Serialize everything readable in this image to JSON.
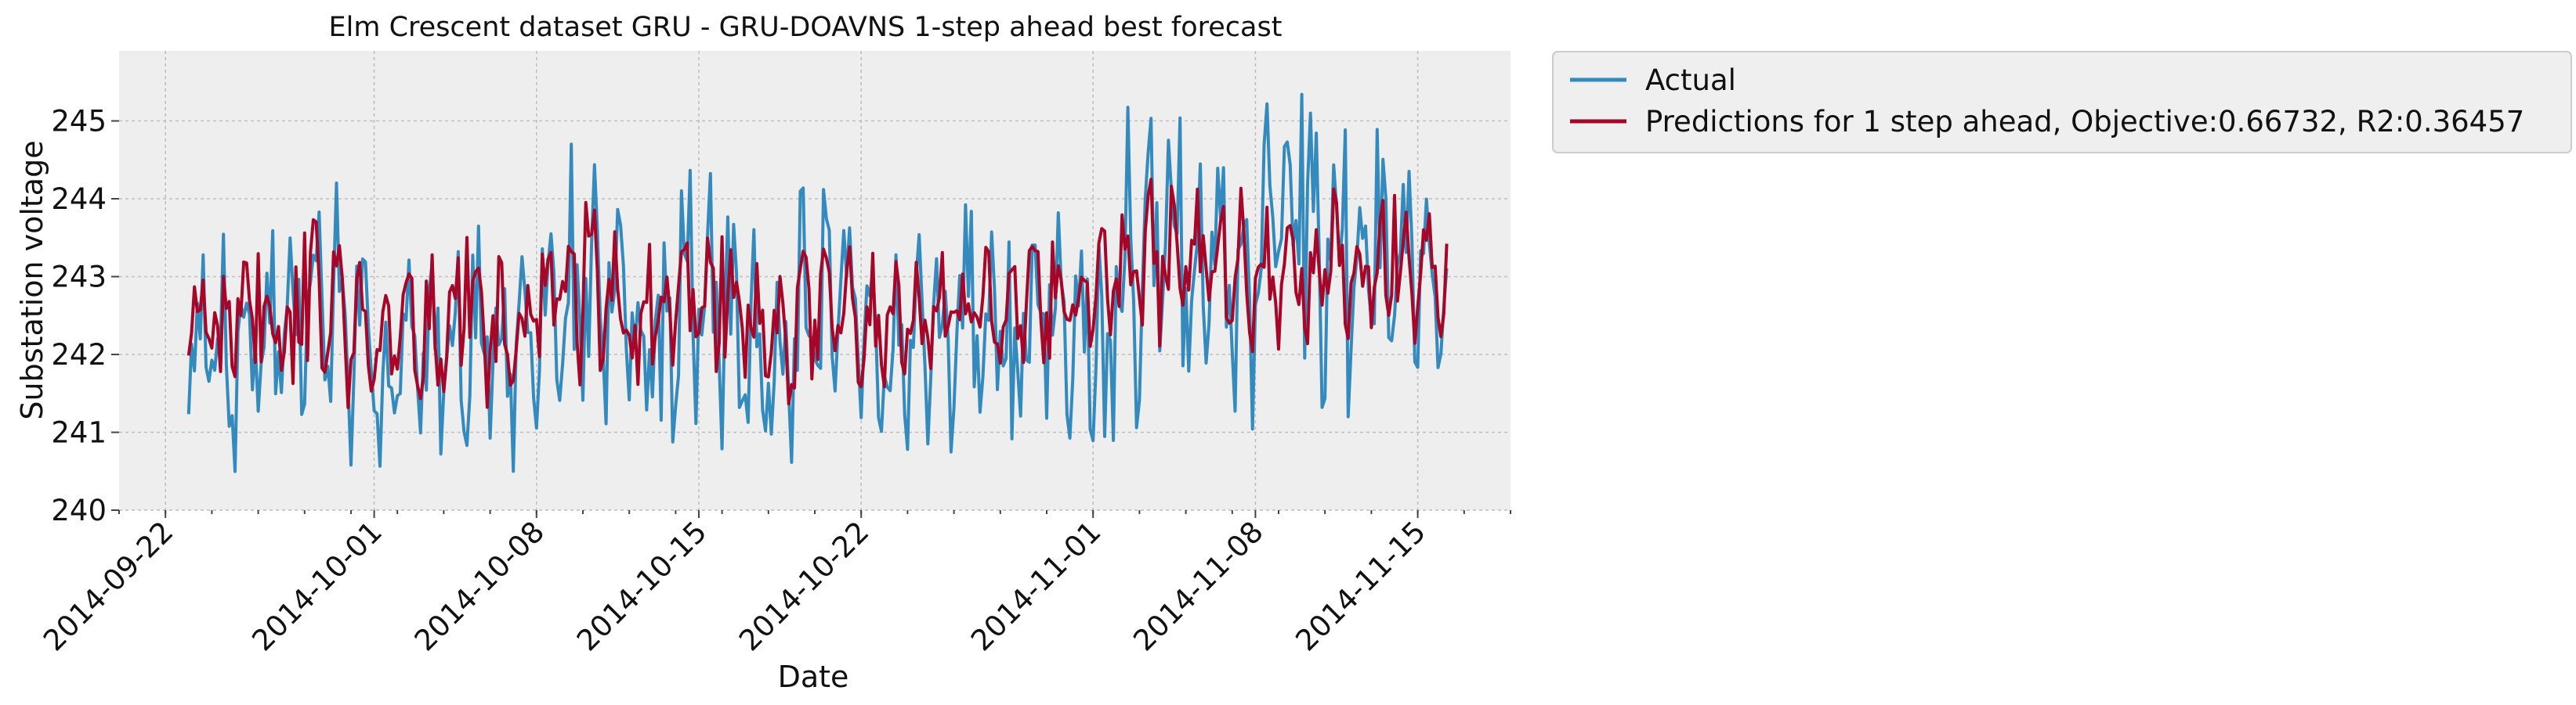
{
  "chart_data": {
    "type": "line",
    "title": "Elm Crescent dataset GRU -  GRU-DOAVNS 1-step ahead best forecast",
    "xlabel": "Date",
    "ylabel": "Substation  voltage",
    "xlim": [
      "2014-09-20",
      "2014-11-19"
    ],
    "ylim": [
      240,
      245.9
    ],
    "xticks": [
      "2014-09-22",
      "2014-10-01",
      "2014-10-08",
      "2014-10-15",
      "2014-10-22",
      "2014-11-01",
      "2014-11-08",
      "2014-11-15"
    ],
    "yticks": [
      240,
      241,
      242,
      243,
      244,
      245
    ],
    "grid": true,
    "legend_position": "outside-top-right",
    "x_start": "2014-09-23",
    "x_end": "2014-11-16",
    "series": [
      {
        "name": "Actual",
        "color": "#348abd",
        "envelope": [
          {
            "date": "2014-09-23",
            "min": 240.9,
            "max": 243.6
          },
          {
            "date": "2014-09-25",
            "min": 240.3,
            "max": 243.9
          },
          {
            "date": "2014-09-27",
            "min": 241.0,
            "max": 243.6
          },
          {
            "date": "2014-09-29",
            "min": 240.7,
            "max": 244.8
          },
          {
            "date": "2014-10-01",
            "min": 240.3,
            "max": 243.1
          },
          {
            "date": "2014-10-03",
            "min": 240.6,
            "max": 243.4
          },
          {
            "date": "2014-10-05",
            "min": 240.8,
            "max": 243.9
          },
          {
            "date": "2014-10-07",
            "min": 240.5,
            "max": 243.2
          },
          {
            "date": "2014-10-09",
            "min": 240.7,
            "max": 244.7
          },
          {
            "date": "2014-10-11",
            "min": 240.6,
            "max": 244.8
          },
          {
            "date": "2014-10-13",
            "min": 240.9,
            "max": 243.6
          },
          {
            "date": "2014-10-15",
            "min": 240.8,
            "max": 244.6
          },
          {
            "date": "2014-10-17",
            "min": 240.4,
            "max": 243.5
          },
          {
            "date": "2014-10-19",
            "min": 240.2,
            "max": 244.4
          },
          {
            "date": "2014-10-21",
            "min": 240.8,
            "max": 244.2
          },
          {
            "date": "2014-10-23",
            "min": 240.5,
            "max": 243.6
          },
          {
            "date": "2014-10-25",
            "min": 240.8,
            "max": 243.7
          },
          {
            "date": "2014-10-27",
            "min": 240.6,
            "max": 244.0
          },
          {
            "date": "2014-10-29",
            "min": 240.9,
            "max": 244.0
          },
          {
            "date": "2014-10-31",
            "min": 240.9,
            "max": 243.9
          },
          {
            "date": "2014-11-02",
            "min": 240.8,
            "max": 245.1
          },
          {
            "date": "2014-11-04",
            "min": 241.2,
            "max": 245.4
          },
          {
            "date": "2014-11-06",
            "min": 241.1,
            "max": 245.0
          },
          {
            "date": "2014-11-08",
            "min": 241.0,
            "max": 245.2
          },
          {
            "date": "2014-11-10",
            "min": 241.3,
            "max": 245.6
          },
          {
            "date": "2014-11-12",
            "min": 241.2,
            "max": 245.2
          },
          {
            "date": "2014-11-14",
            "min": 241.5,
            "max": 245.1
          },
          {
            "date": "2014-11-16",
            "min": 241.7,
            "max": 244.8
          }
        ]
      },
      {
        "name": "Predictions for 1 step ahead, Objective:0.66732, R2:0.36457",
        "color": "#a60628",
        "envelope": [
          {
            "date": "2014-09-23",
            "min": 241.8,
            "max": 243.3
          },
          {
            "date": "2014-09-25",
            "min": 241.7,
            "max": 243.4
          },
          {
            "date": "2014-09-27",
            "min": 241.6,
            "max": 243.5
          },
          {
            "date": "2014-09-29",
            "min": 241.3,
            "max": 243.9
          },
          {
            "date": "2014-10-01",
            "min": 241.2,
            "max": 243.0
          },
          {
            "date": "2014-10-03",
            "min": 241.3,
            "max": 243.3
          },
          {
            "date": "2014-10-05",
            "min": 241.3,
            "max": 243.6
          },
          {
            "date": "2014-10-07",
            "min": 241.2,
            "max": 243.1
          },
          {
            "date": "2014-10-09",
            "min": 241.5,
            "max": 243.9
          },
          {
            "date": "2014-10-11",
            "min": 241.4,
            "max": 244.0
          },
          {
            "date": "2014-10-13",
            "min": 241.5,
            "max": 243.4
          },
          {
            "date": "2014-10-15",
            "min": 241.6,
            "max": 243.8
          },
          {
            "date": "2014-10-17",
            "min": 241.3,
            "max": 243.3
          },
          {
            "date": "2014-10-19",
            "min": 241.2,
            "max": 243.6
          },
          {
            "date": "2014-10-21",
            "min": 241.6,
            "max": 243.6
          },
          {
            "date": "2014-10-23",
            "min": 241.4,
            "max": 243.2
          },
          {
            "date": "2014-10-25",
            "min": 241.6,
            "max": 243.3
          },
          {
            "date": "2014-10-27",
            "min": 241.5,
            "max": 243.5
          },
          {
            "date": "2014-10-29",
            "min": 241.7,
            "max": 243.6
          },
          {
            "date": "2014-10-31",
            "min": 241.7,
            "max": 243.5
          },
          {
            "date": "2014-11-02",
            "min": 241.9,
            "max": 244.1
          },
          {
            "date": "2014-11-04",
            "min": 242.1,
            "max": 244.3
          },
          {
            "date": "2014-11-06",
            "min": 242.0,
            "max": 244.4
          },
          {
            "date": "2014-11-08",
            "min": 241.8,
            "max": 244.3
          },
          {
            "date": "2014-11-10",
            "min": 242.1,
            "max": 244.1
          },
          {
            "date": "2014-11-12",
            "min": 241.9,
            "max": 244.2
          },
          {
            "date": "2014-11-14",
            "min": 242.1,
            "max": 244.1
          },
          {
            "date": "2014-11-16",
            "min": 242.2,
            "max": 244.0
          }
        ]
      }
    ]
  }
}
